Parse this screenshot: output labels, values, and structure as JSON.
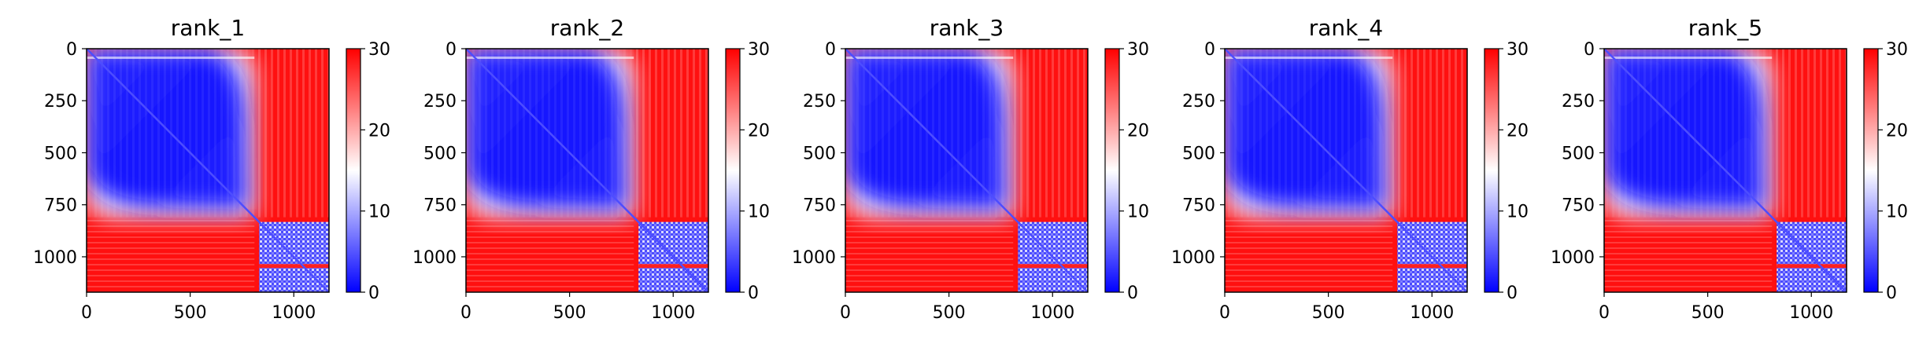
{
  "chart_data": [
    {
      "type": "heatmap",
      "title": "rank_1",
      "xticks": [
        0,
        500,
        1000
      ],
      "yticks": [
        0,
        250,
        500,
        750,
        1000
      ],
      "xlim": [
        0,
        1170
      ],
      "ylim": [
        1170,
        0
      ],
      "colorbar": {
        "min": 0,
        "max": 30,
        "ticks": [
          0,
          10,
          20,
          30
        ],
        "colormap": "bwr"
      },
      "blocks": {
        "block_a_end": 810,
        "block_b_end": 1170
      },
      "bands": [
        1035
      ]
    },
    {
      "type": "heatmap",
      "title": "rank_2",
      "xticks": [
        0,
        500,
        1000
      ],
      "yticks": [
        0,
        250,
        500,
        750,
        1000
      ],
      "xlim": [
        0,
        1170
      ],
      "ylim": [
        1170,
        0
      ],
      "colorbar": {
        "min": 0,
        "max": 30,
        "ticks": [
          0,
          10,
          20,
          30
        ],
        "colormap": "bwr"
      },
      "blocks": {
        "block_a_end": 810,
        "block_b_end": 1170
      },
      "bands": [
        1035
      ]
    },
    {
      "type": "heatmap",
      "title": "rank_3",
      "xticks": [
        0,
        500,
        1000
      ],
      "yticks": [
        0,
        250,
        500,
        750,
        1000
      ],
      "xlim": [
        0,
        1170
      ],
      "ylim": [
        1170,
        0
      ],
      "colorbar": {
        "min": 0,
        "max": 30,
        "ticks": [
          0,
          10,
          20,
          30
        ],
        "colormap": "bwr"
      },
      "blocks": {
        "block_a_end": 810,
        "block_b_end": 1170
      },
      "bands": [
        1035
      ]
    },
    {
      "type": "heatmap",
      "title": "rank_4",
      "xticks": [
        0,
        500,
        1000
      ],
      "yticks": [
        0,
        250,
        500,
        750,
        1000
      ],
      "xlim": [
        0,
        1170
      ],
      "ylim": [
        1170,
        0
      ],
      "colorbar": {
        "min": 0,
        "max": 30,
        "ticks": [
          0,
          10,
          20,
          30
        ],
        "colormap": "bwr"
      },
      "blocks": {
        "block_a_end": 810,
        "block_b_end": 1170
      },
      "bands": [
        1035
      ]
    },
    {
      "type": "heatmap",
      "title": "rank_5",
      "xticks": [
        0,
        500,
        1000
      ],
      "yticks": [
        0,
        250,
        500,
        750,
        1000
      ],
      "xlim": [
        0,
        1170
      ],
      "ylim": [
        1170,
        0
      ],
      "colorbar": {
        "min": 0,
        "max": 30,
        "ticks": [
          0,
          10,
          20,
          30
        ],
        "colormap": "bwr"
      },
      "blocks": {
        "block_a_end": 810,
        "block_b_end": 1170
      },
      "bands": [
        1035
      ]
    }
  ],
  "colors": {
    "low": "#0000ff",
    "mid": "#ffffff",
    "high": "#ff0000"
  }
}
